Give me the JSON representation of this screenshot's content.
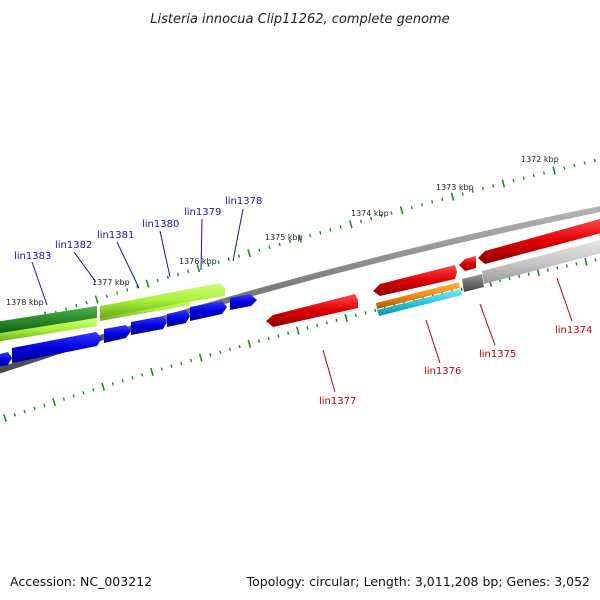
{
  "title": "Listeria innocua Clip11262, complete genome",
  "footer": {
    "accession": "Accession: NC_003212",
    "summary": "Topology: circular; Length: 3,011,208 bp; Genes: 3,052"
  },
  "kbp_labels": [
    "1372 kbp",
    "1373 kbp",
    "1374 kbp",
    "1375 kbp",
    "1376 kbp",
    "1377 kbp",
    "1378 kbp"
  ],
  "gene_labels": {
    "blue": [
      "lin1383",
      "lin1382",
      "lin1381",
      "lin1380",
      "lin1379",
      "lin1378"
    ],
    "red": [
      "lin1377",
      "lin1376",
      "lin1375",
      "lin1374"
    ]
  },
  "colors": {
    "backbone": "#7a7a7a",
    "tick": "#1e8c1e",
    "gene_blue": "#0a0ae6",
    "gene_red": "#e60a0a",
    "gene_green_dark": "#2a8a2a",
    "gene_green_light": "#a6f03a",
    "gene_orange": "#f08c14",
    "gene_cyan": "#28c8dc",
    "gene_gray_dark": "#6e6e6e",
    "gene_gray_light": "#c8c8c8"
  }
}
